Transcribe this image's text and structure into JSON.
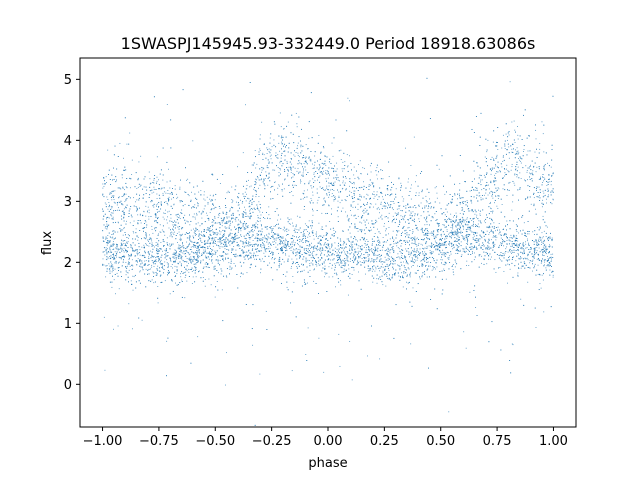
{
  "chart_data": {
    "type": "scatter",
    "title": "1SWASPJ145945.93-332449.0 Period 18918.63086s",
    "xlabel": "phase",
    "ylabel": "flux",
    "xlim": [
      -1.1,
      1.1
    ],
    "ylim": [
      -0.7,
      5.35
    ],
    "xticks": [
      -1.0,
      -0.75,
      -0.5,
      -0.25,
      0.0,
      0.25,
      0.5,
      0.75,
      1.0
    ],
    "xtick_labels": [
      "−1.00",
      "−0.75",
      "−0.50",
      "−0.25",
      "0.00",
      "0.25",
      "0.50",
      "0.75",
      "1.00"
    ],
    "yticks": [
      0,
      1,
      2,
      3,
      4,
      5
    ],
    "ytick_labels": [
      "0",
      "1",
      "2",
      "3",
      "4",
      "5"
    ],
    "grid": false,
    "point_color": "#1f77b4",
    "x_range": [
      -1.0,
      1.0
    ],
    "series": [
      {
        "description": "lower band (quiescent state)",
        "points": [
          [
            -1.0,
            2.15
          ],
          [
            -0.9,
            2.15
          ],
          [
            -0.8,
            2.1
          ],
          [
            -0.7,
            2.05
          ],
          [
            -0.6,
            2.1
          ],
          [
            -0.5,
            2.25
          ],
          [
            -0.4,
            2.35
          ],
          [
            -0.3,
            2.35
          ],
          [
            -0.2,
            2.3
          ],
          [
            -0.1,
            2.2
          ],
          [
            0.0,
            2.15
          ],
          [
            0.1,
            2.15
          ],
          [
            0.2,
            2.1
          ],
          [
            0.3,
            2.05
          ],
          [
            0.4,
            2.1
          ],
          [
            0.5,
            2.25
          ],
          [
            0.6,
            2.35
          ],
          [
            0.7,
            2.35
          ],
          [
            0.8,
            2.3
          ],
          [
            0.9,
            2.2
          ],
          [
            1.0,
            2.15
          ]
        ]
      },
      {
        "description": "upper band (active state, humped)",
        "points": [
          [
            -1.0,
            3.0
          ],
          [
            -0.9,
            3.0
          ],
          [
            -0.8,
            2.9
          ],
          [
            -0.7,
            2.8
          ],
          [
            -0.6,
            2.7
          ],
          [
            -0.5,
            2.6
          ],
          [
            -0.4,
            2.7
          ],
          [
            -0.3,
            3.3
          ],
          [
            -0.2,
            3.75
          ],
          [
            -0.1,
            3.55
          ],
          [
            0.0,
            3.3
          ],
          [
            0.1,
            3.1
          ],
          [
            0.2,
            2.95
          ],
          [
            0.3,
            2.85
          ],
          [
            0.4,
            2.75
          ],
          [
            0.5,
            2.6
          ],
          [
            0.6,
            2.7
          ],
          [
            0.7,
            3.3
          ],
          [
            0.8,
            3.75
          ],
          [
            0.9,
            3.55
          ],
          [
            1.0,
            3.3
          ]
        ]
      }
    ]
  }
}
